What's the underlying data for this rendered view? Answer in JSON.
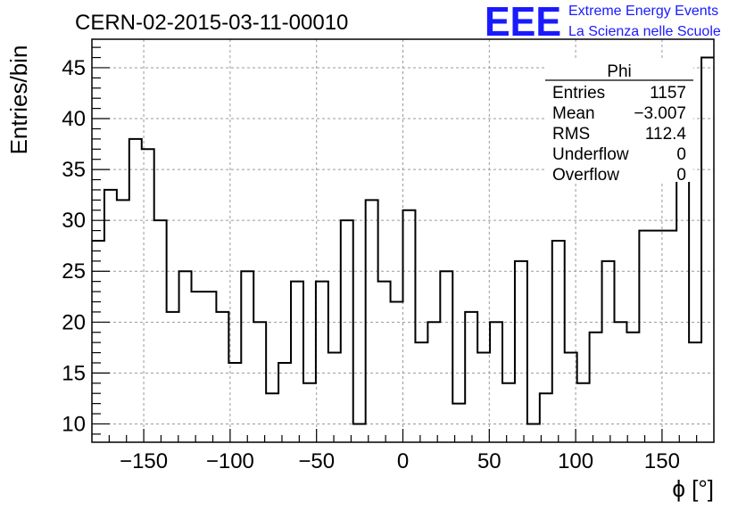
{
  "title": "CERN-02-2015-03-11-00010",
  "logo": {
    "mark": "EEE",
    "line1": "Extreme Energy Events",
    "line2": "La Scienza nelle Scuole",
    "color": "#1a1aff"
  },
  "stats": {
    "name": "Phi",
    "rows": [
      {
        "label": "Entries",
        "value": "1157"
      },
      {
        "label": "Mean",
        "value": "−3.007"
      },
      {
        "label": "RMS",
        "value": "112.4"
      },
      {
        "label": "Underflow",
        "value": "0"
      },
      {
        "label": "Overflow",
        "value": "0"
      }
    ]
  },
  "chart_data": {
    "type": "histogram",
    "xlabel": "ϕ [°]",
    "ylabel": "Entries/bin",
    "xlim": [
      -180,
      180
    ],
    "ylim": [
      8.2,
      47.8
    ],
    "grid": true,
    "bin_width": 7.2,
    "x_ticks": [
      -150,
      -100,
      -50,
      0,
      50,
      100,
      150
    ],
    "x_tick_labels": [
      "−150",
      "−100",
      "−50",
      "0",
      "50",
      "100",
      "150"
    ],
    "y_ticks": [
      10,
      15,
      20,
      25,
      30,
      35,
      40,
      45
    ],
    "y_tick_labels": [
      "10",
      "15",
      "20",
      "25",
      "30",
      "35",
      "40",
      "45"
    ],
    "bin_edges_start": -180,
    "values": [
      28,
      33,
      32,
      38,
      37,
      30,
      21,
      25,
      23,
      23,
      21,
      16,
      25,
      20,
      13,
      16,
      24,
      14,
      24,
      17,
      30,
      10,
      32,
      24,
      22,
      31,
      18,
      20,
      25,
      12,
      21,
      17,
      20,
      14,
      26,
      10,
      13,
      28,
      17,
      14,
      19,
      26,
      20,
      19,
      29,
      29,
      29,
      38,
      18,
      46
    ]
  }
}
